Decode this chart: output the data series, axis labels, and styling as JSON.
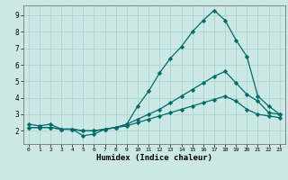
{
  "xlabel": "Humidex (Indice chaleur)",
  "bg_color": "#cce8e4",
  "grid_color": "#aad4d0",
  "line_color": "#006b6b",
  "xlim": [
    -0.5,
    23.5
  ],
  "ylim": [
    1.2,
    9.6
  ],
  "xticks": [
    0,
    1,
    2,
    3,
    4,
    5,
    6,
    7,
    8,
    9,
    10,
    11,
    12,
    13,
    14,
    15,
    16,
    17,
    18,
    19,
    20,
    21,
    22,
    23
  ],
  "yticks": [
    2,
    3,
    4,
    5,
    6,
    7,
    8,
    9
  ],
  "line1_x": [
    0,
    1,
    2,
    3,
    4,
    5,
    6,
    7,
    8,
    9,
    10,
    11,
    12,
    13,
    14,
    15,
    16,
    17,
    18,
    19,
    20,
    21,
    22,
    23
  ],
  "line1_y": [
    2.4,
    2.3,
    2.4,
    2.1,
    2.1,
    1.7,
    1.8,
    2.1,
    2.2,
    2.4,
    3.5,
    4.4,
    5.5,
    6.4,
    7.1,
    8.0,
    8.7,
    9.3,
    8.7,
    7.5,
    6.5,
    4.1,
    3.5,
    3.0
  ],
  "line2_x": [
    0,
    1,
    2,
    3,
    4,
    5,
    6,
    7,
    8,
    9,
    10,
    11,
    12,
    13,
    14,
    15,
    16,
    17,
    18,
    19,
    20,
    21,
    22,
    23
  ],
  "line2_y": [
    2.2,
    2.2,
    2.2,
    2.1,
    2.1,
    2.0,
    2.0,
    2.1,
    2.2,
    2.4,
    2.7,
    3.0,
    3.3,
    3.7,
    4.1,
    4.5,
    4.9,
    5.3,
    5.6,
    4.9,
    4.2,
    3.8,
    3.1,
    3.0
  ],
  "line3_x": [
    0,
    1,
    2,
    3,
    4,
    5,
    6,
    7,
    8,
    9,
    10,
    11,
    12,
    13,
    14,
    15,
    16,
    17,
    18,
    19,
    20,
    21,
    22,
    23
  ],
  "line3_y": [
    2.2,
    2.2,
    2.2,
    2.1,
    2.1,
    2.0,
    2.0,
    2.1,
    2.2,
    2.3,
    2.5,
    2.7,
    2.9,
    3.1,
    3.3,
    3.5,
    3.7,
    3.9,
    4.1,
    3.8,
    3.3,
    3.0,
    2.9,
    2.8
  ]
}
